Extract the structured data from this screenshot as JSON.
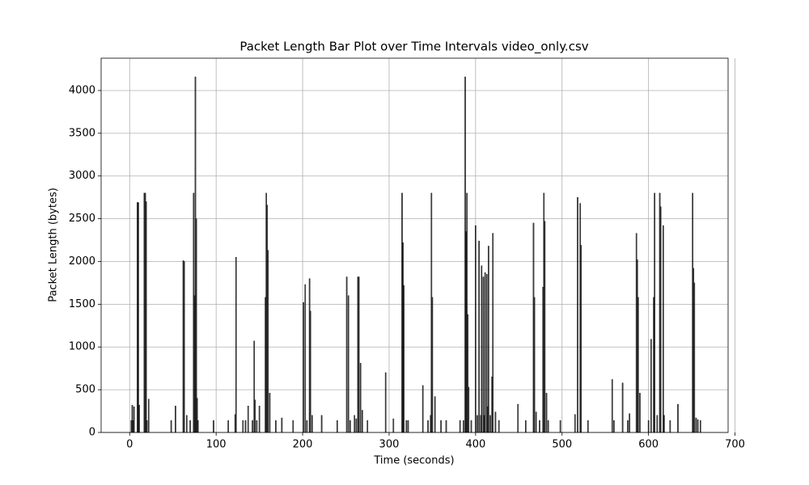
{
  "chart_data": {
    "type": "bar",
    "title": "Packet Length Bar Plot over Time Intervals video_only.csv",
    "xlabel": "Time (seconds)",
    "ylabel": "Packet Length (bytes)",
    "x": [
      2,
      3,
      4,
      5,
      9,
      10,
      11,
      17,
      18,
      19,
      20,
      22,
      48,
      53,
      62,
      63,
      66,
      70,
      74,
      75,
      76,
      77,
      78,
      79,
      97,
      114,
      122,
      123,
      131,
      134,
      137,
      142,
      144,
      145,
      147,
      150,
      157,
      158,
      159,
      160,
      162,
      169,
      176,
      189,
      201,
      203,
      205,
      208,
      209,
      211,
      222,
      240,
      251,
      253,
      255,
      260,
      262,
      264,
      265,
      267,
      269,
      275,
      296,
      305,
      315,
      316,
      317,
      320,
      322,
      339,
      345,
      348,
      349,
      350,
      353,
      360,
      366,
      382,
      386,
      388,
      389,
      390,
      391,
      392,
      395,
      400,
      402,
      404,
      406,
      407,
      409,
      410,
      411,
      413,
      414,
      415,
      417,
      419,
      420,
      423,
      427,
      449,
      458,
      467,
      468,
      470,
      474,
      478,
      479,
      480,
      482,
      484,
      498,
      515,
      518,
      521,
      522,
      530,
      558,
      560,
      570,
      576,
      578,
      586,
      587,
      588,
      590,
      600,
      603,
      606,
      607,
      610,
      613,
      614,
      617,
      618,
      625,
      634,
      651,
      652,
      653,
      655,
      657,
      660
    ],
    "values": [
      140,
      320,
      140,
      300,
      2690,
      2690,
      320,
      2800,
      2800,
      2700,
      140,
      390,
      140,
      310,
      2010,
      2000,
      200,
      140,
      2800,
      1600,
      4160,
      2500,
      400,
      140,
      140,
      140,
      210,
      2050,
      140,
      140,
      310,
      140,
      1070,
      380,
      140,
      310,
      1580,
      2800,
      2660,
      2130,
      460,
      140,
      170,
      140,
      1520,
      1730,
      140,
      1800,
      1420,
      200,
      200,
      140,
      1820,
      1600,
      140,
      200,
      160,
      1820,
      1820,
      810,
      260,
      140,
      700,
      160,
      2800,
      2220,
      1720,
      140,
      140,
      550,
      140,
      200,
      2800,
      1580,
      420,
      140,
      140,
      140,
      140,
      4160,
      2350,
      2800,
      1380,
      530,
      140,
      2420,
      200,
      2240,
      200,
      1950,
      1820,
      200,
      1870,
      1850,
      300,
      2180,
      200,
      650,
      2330,
      240,
      140,
      330,
      140,
      2450,
      1580,
      240,
      140,
      1700,
      2800,
      2470,
      460,
      140,
      140,
      210,
      2750,
      2680,
      2190,
      140,
      620,
      140,
      580,
      140,
      220,
      2330,
      2020,
      1580,
      460,
      140,
      1090,
      1580,
      2800,
      200,
      2800,
      2640,
      2420,
      200,
      140,
      330,
      2800,
      1920,
      1750,
      170,
      150,
      140
    ],
    "color": "#000000",
    "xlim": [
      -33,
      692
    ],
    "ylim": [
      0,
      4378
    ],
    "xticks": [
      0,
      100,
      200,
      300,
      400,
      500,
      600,
      700
    ],
    "yticks": [
      0,
      500,
      1000,
      1500,
      2000,
      2500,
      3000,
      3500,
      4000
    ],
    "grid": true
  }
}
